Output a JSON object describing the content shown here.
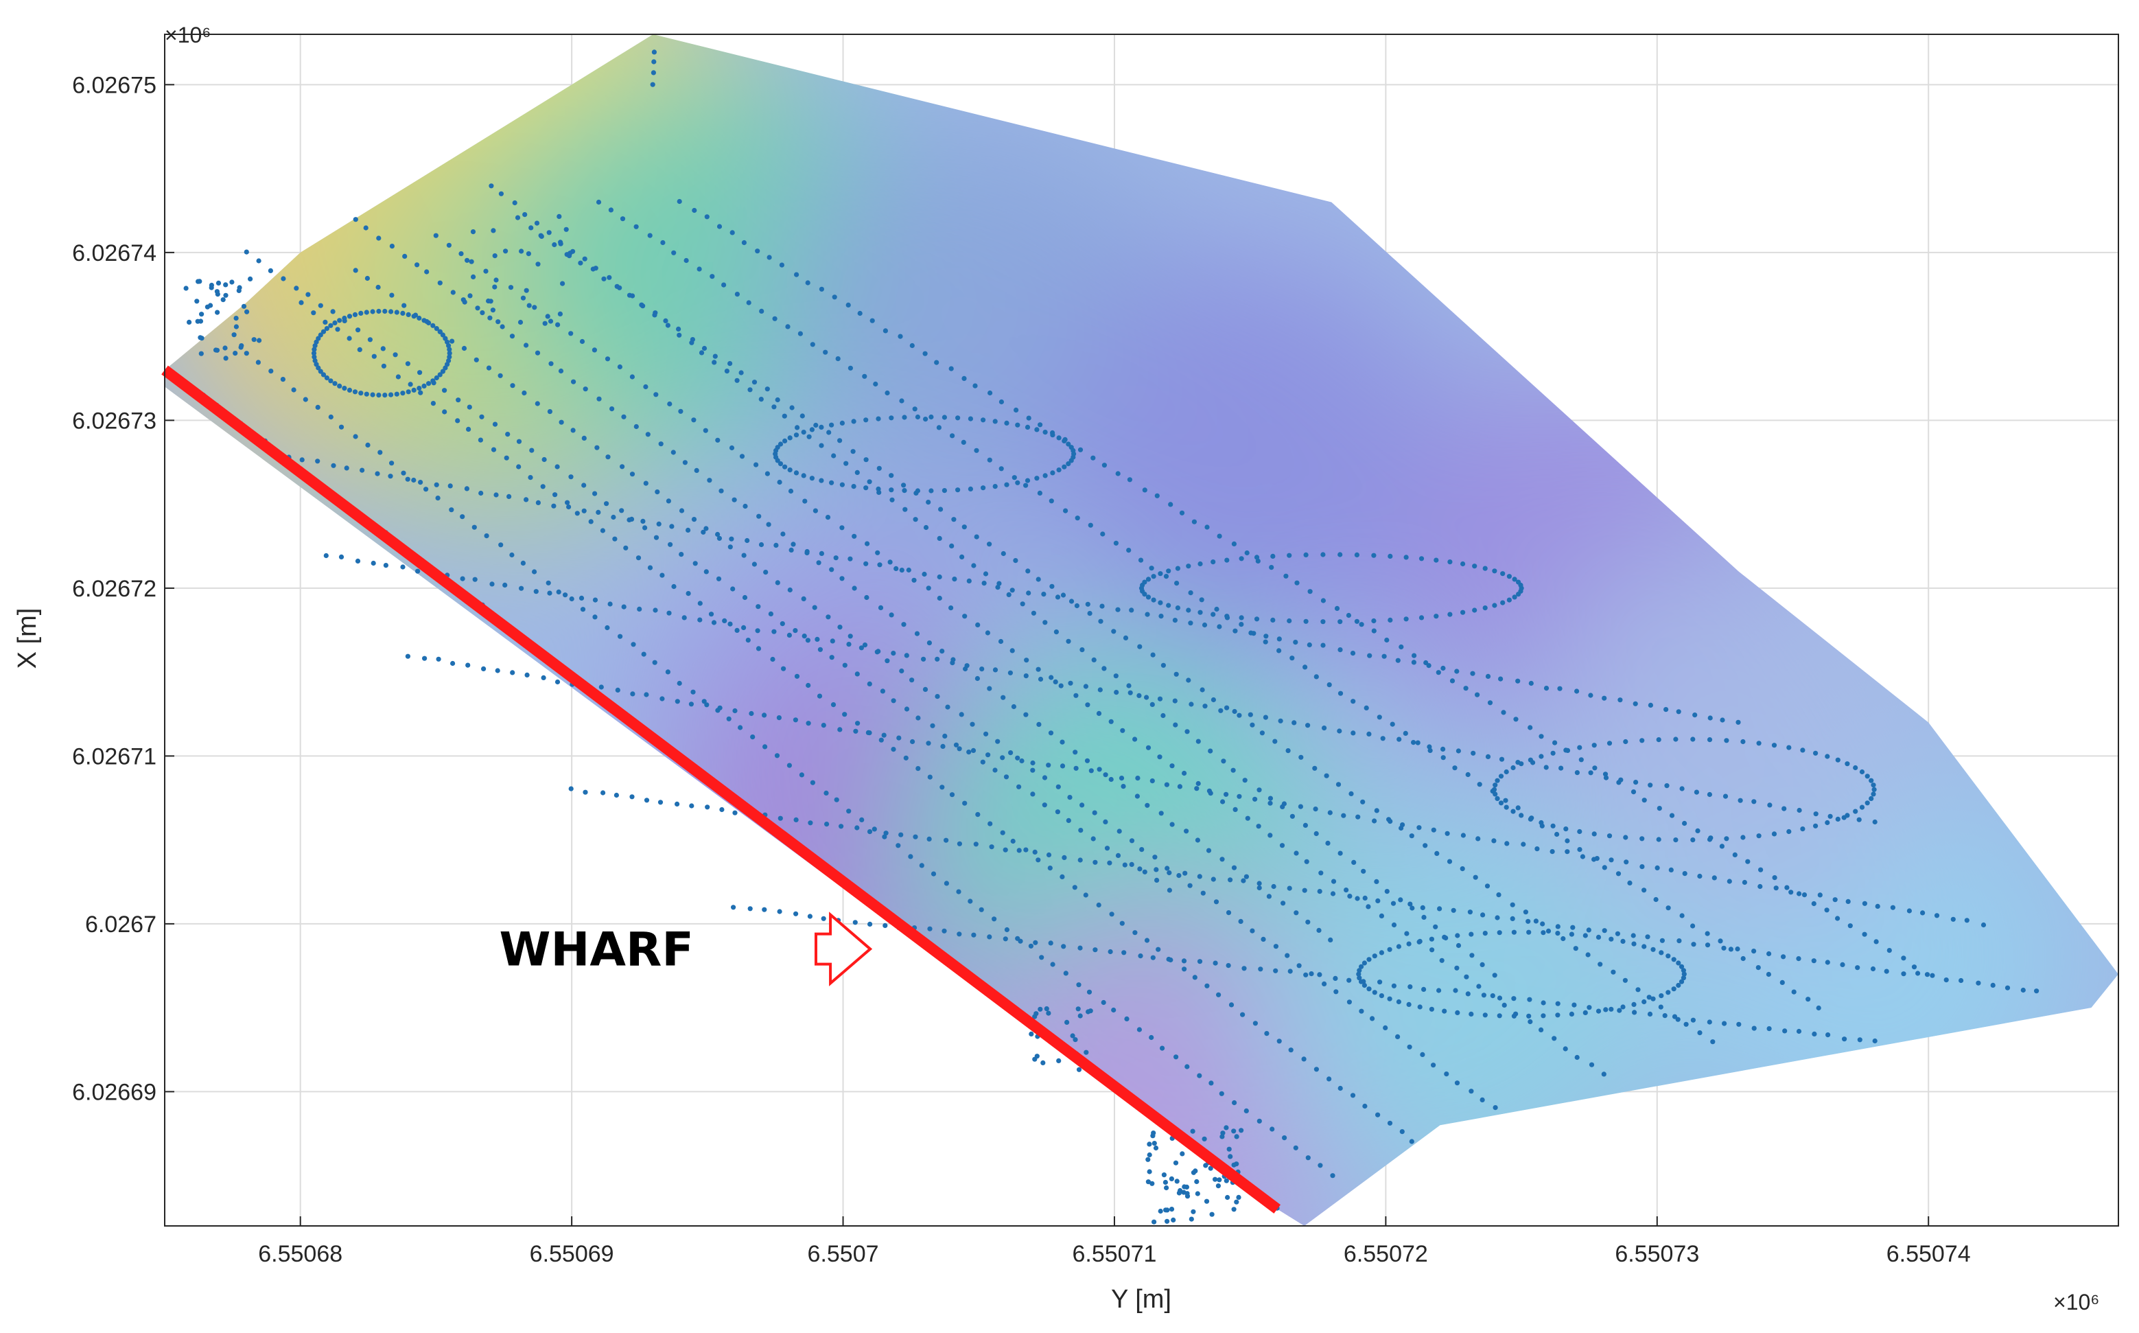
{
  "chart_data": {
    "type": "scatter",
    "title": "",
    "xlabel": "Y [m]",
    "ylabel": "X [m]",
    "x_exponent_label": "×10⁶",
    "y_exponent_label": "×10⁶",
    "xlim": [
      6.550675,
      6.550747
    ],
    "ylim": [
      6.026682,
      6.026753
    ],
    "x_ticks": [
      6.55068,
      6.55069,
      6.5507,
      6.55071,
      6.55072,
      6.55073,
      6.55074
    ],
    "x_tick_labels": [
      "6.55068",
      "6.55069",
      "6.5507",
      "6.55071",
      "6.55072",
      "6.55073",
      "6.55074"
    ],
    "y_ticks": [
      6.02669,
      6.0267,
      6.02671,
      6.02672,
      6.02673,
      6.02674,
      6.02675
    ],
    "y_tick_labels": [
      "6.02669",
      "6.0267",
      "6.02671",
      "6.02672",
      "6.02673",
      "6.02674",
      "6.02675"
    ],
    "grid": true,
    "surface": {
      "type": "interpolated-depth-surface",
      "colormap": "parula",
      "boundary": [
        [
          6.550675,
          6.026733
        ],
        [
          6.550678,
          6.026737
        ],
        [
          6.55068,
          6.02674
        ],
        [
          6.550693,
          6.026753
        ],
        [
          6.550718,
          6.026743
        ],
        [
          6.550733,
          6.026721
        ],
        [
          6.55074,
          6.026712
        ],
        [
          6.550747,
          6.026697
        ],
        [
          6.550746,
          6.026695
        ],
        [
          6.550722,
          6.026688
        ],
        [
          6.550717,
          6.026682
        ],
        [
          6.550716,
          6.026683
        ],
        [
          6.550675,
          6.026732
        ]
      ],
      "color_zones": [
        {
          "y": 6.550682,
          "x": 6.026744,
          "color": "#f3e55a"
        },
        {
          "y": 6.55069,
          "x": 6.026747,
          "color": "#efe061"
        },
        {
          "y": 6.550683,
          "x": 6.026738,
          "color": "#e8c977"
        },
        {
          "y": 6.550688,
          "x": 6.026736,
          "color": "#b6d58e"
        },
        {
          "y": 6.550695,
          "x": 6.02674,
          "color": "#6fcdb9"
        },
        {
          "y": 6.550705,
          "x": 6.026736,
          "color": "#8aa5dc"
        },
        {
          "y": 6.550715,
          "x": 6.026728,
          "color": "#8c8fe0"
        },
        {
          "y": 6.550728,
          "x": 6.026721,
          "color": "#9b8ce0"
        },
        {
          "y": 6.5507,
          "x": 6.026712,
          "color": "#9ba0e6"
        },
        {
          "y": 6.550701,
          "x": 6.026704,
          "color": "#a48ad8"
        },
        {
          "y": 6.55071,
          "x": 6.026704,
          "color": "#6fd5c2"
        },
        {
          "y": 6.550712,
          "x": 6.02669,
          "color": "#b59be0"
        },
        {
          "y": 6.550723,
          "x": 6.026695,
          "color": "#8fd0e6"
        },
        {
          "y": 6.550738,
          "x": 6.026698,
          "color": "#96d0ee"
        },
        {
          "y": 6.550733,
          "x": 6.026711,
          "color": "#a7bbe8"
        }
      ]
    },
    "series": [
      {
        "marker_color": "#1f6fb2",
        "tracks": [
          [
            [
              6.550676,
              6.026732
            ],
            [
              6.550716,
              6.026683
            ]
          ],
          [
            [
              6.550678,
              6.026734
            ],
            [
              6.550718,
              6.026685
            ]
          ],
          [
            [
              6.55068,
              6.026737
            ],
            [
              6.550721,
              6.026687
            ]
          ],
          [
            [
              6.550682,
              6.026739
            ],
            [
              6.550724,
              6.026689
            ]
          ],
          [
            [
              6.550685,
              6.026741
            ],
            [
              6.550728,
              6.026691
            ]
          ],
          [
            [
              6.550688,
              6.026742
            ],
            [
              6.550732,
              6.026693
            ]
          ],
          [
            [
              6.550691,
              6.026743
            ],
            [
              6.550736,
              6.026695
            ]
          ],
          [
            [
              6.550694,
              6.026743
            ],
            [
              6.55074,
              6.026697
            ]
          ],
          [
            [
              6.550679,
              6.026728
            ],
            [
              6.550733,
              6.026712
            ]
          ],
          [
            [
              6.550681,
              6.026722
            ],
            [
              6.550738,
              6.026706
            ]
          ],
          [
            [
              6.550684,
              6.026716
            ],
            [
              6.550742,
              6.0267
            ]
          ],
          [
            [
              6.55069,
              6.026708
            ],
            [
              6.550744,
              6.026696
            ]
          ],
          [
            [
              6.550696,
              6.026701
            ],
            [
              6.550738,
              6.026693
            ]
          ],
          [
            [
              6.550678,
              6.02674
            ],
            [
              6.550712,
              6.026702
            ]
          ],
          [
            [
              6.550682,
              6.026742
            ],
            [
              6.550718,
              6.026699
            ]
          ],
          [
            [
              6.550687,
              6.026744
            ],
            [
              6.550724,
              6.026697
            ]
          ],
          [
            [
              6.550693,
              6.026752
            ],
            [
              6.550693,
              6.02675
            ]
          ]
        ],
        "loops": [
          {
            "cy": 6.550703,
            "cx": 6.026728,
            "ry": 5.5e-06,
            "rx": 2.2e-06
          },
          {
            "cy": 6.550718,
            "cx": 6.02672,
            "ry": 7e-06,
            "rx": 2e-06
          },
          {
            "cy": 6.550731,
            "cx": 6.026708,
            "ry": 7e-06,
            "rx": 3e-06
          },
          {
            "cy": 6.550725,
            "cx": 6.026697,
            "ry": 6e-06,
            "rx": 2.5e-06
          },
          {
            "cy": 6.550683,
            "cx": 6.026734,
            "ry": 2.5e-06,
            "rx": 2.5e-06
          }
        ],
        "clusters": [
          {
            "y": 6.550677,
            "x": 6.026736,
            "n": 40,
            "spread": 1.5e-06
          },
          {
            "y": 6.550713,
            "x": 6.026685,
            "n": 70,
            "spread": 1.8e-06
          },
          {
            "y": 6.550708,
            "x": 6.026693,
            "n": 25,
            "spread": 1.2e-06
          },
          {
            "y": 6.550688,
            "x": 6.026739,
            "n": 30,
            "spread": 2e-06
          }
        ]
      }
    ],
    "annotations": [
      {
        "type": "line",
        "label": "",
        "color": "#ff1a1a",
        "from": [
          6.550675,
          6.026733
        ],
        "to": [
          6.550716,
          6.026683
        ]
      },
      {
        "type": "text",
        "label": "WHARF",
        "color": "#000000",
        "at": [
          6.550695,
          6.0266985
        ]
      },
      {
        "type": "arrow",
        "label": "",
        "color": "#ff1a1a",
        "from": [
          6.550699,
          6.0266985
        ],
        "to": [
          6.550701,
          6.0266985
        ]
      }
    ]
  }
}
